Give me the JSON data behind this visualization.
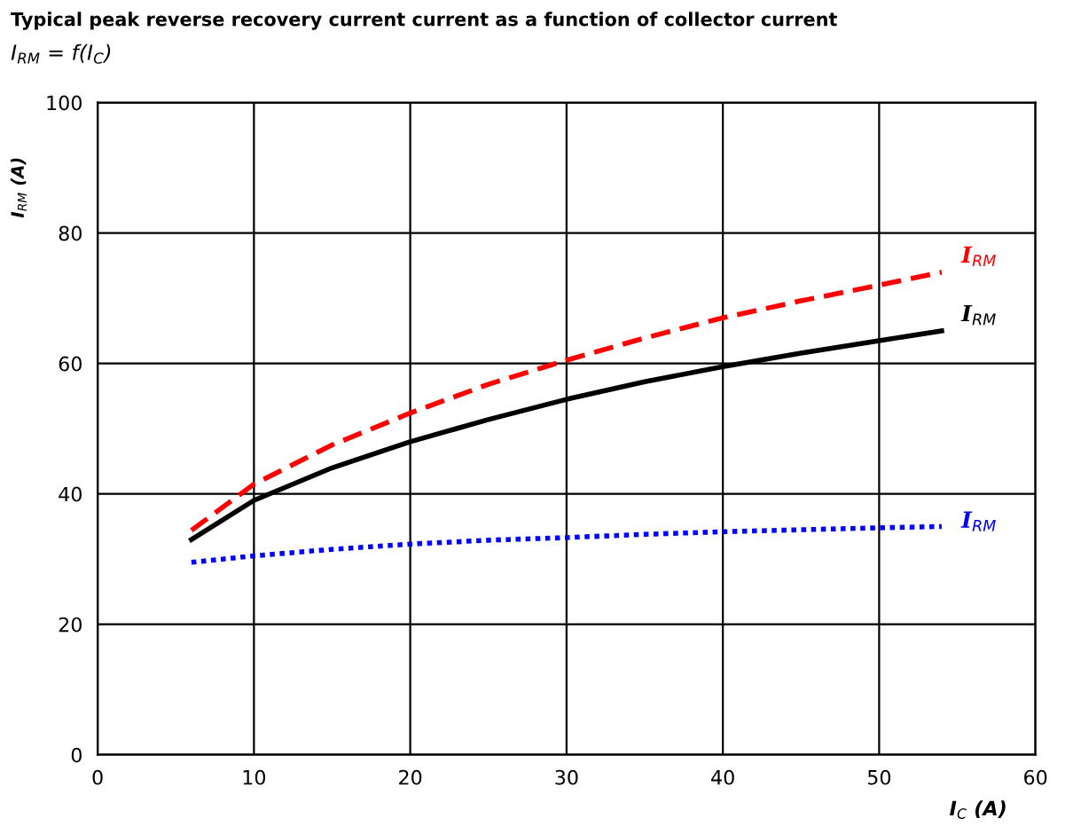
{
  "chart_data": {
    "type": "line",
    "title": "Typical peak reverse recovery current current as a function of collector current",
    "subtitle": "I$_{RM}$ = f(I$_{C}$)",
    "xlabel": "I$_{C}$ (A)",
    "ylabel": "I$_{RM}$ (A)",
    "xlim": [
      0,
      60
    ],
    "xticks": [
      0,
      10,
      20,
      30,
      40,
      50,
      60
    ],
    "ylim": [
      0,
      100
    ],
    "yticks": [
      0,
      20,
      40,
      60,
      80,
      100
    ],
    "grid": true,
    "legend": false,
    "marker": "none",
    "series": [
      {
        "name": "I$_{RM}$",
        "color": "#ff0000",
        "line_style": "dashed",
        "x": [
          6,
          10,
          15,
          20,
          25,
          30,
          35,
          40,
          45,
          50,
          54
        ],
        "values": [
          34.4,
          41.5,
          47.5,
          52.4,
          56.8,
          60.5,
          63.9,
          67,
          69.6,
          72,
          74
        ]
      },
      {
        "name": "I$_{RM}$",
        "color": "#000000",
        "line_style": "solid",
        "x": [
          6,
          10,
          15,
          20,
          25,
          30,
          35,
          40,
          45,
          50,
          54
        ],
        "values": [
          33,
          39,
          44,
          48,
          51.4,
          54.5,
          57.2,
          59.5,
          61.6,
          63.5,
          65
        ]
      },
      {
        "name": "I$_{RM}$",
        "color": "#0000ff",
        "line_style": "dotted",
        "x": [
          6,
          10,
          15,
          20,
          25,
          30,
          35,
          40,
          45,
          50,
          54
        ],
        "values": [
          29.5,
          30.5,
          31.5,
          32.3,
          32.9,
          33.3,
          33.8,
          34.2,
          34.5,
          34.8,
          35
        ]
      }
    ]
  }
}
